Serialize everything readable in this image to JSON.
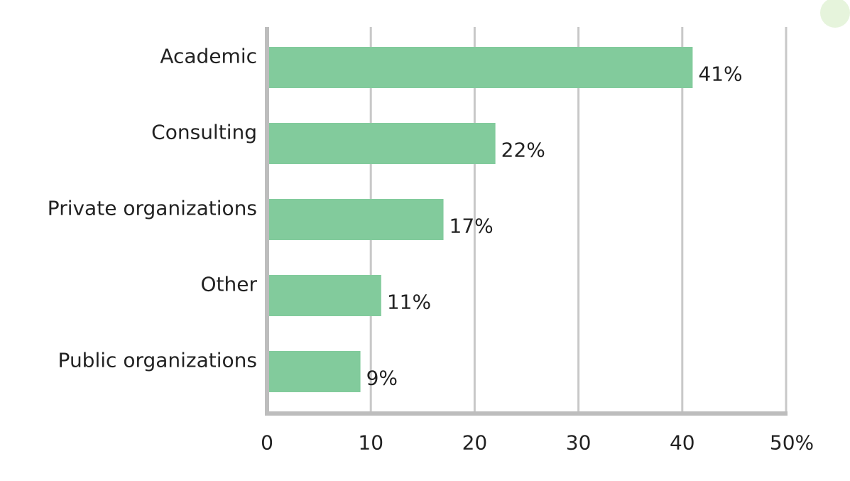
{
  "chart_data": {
    "type": "bar",
    "orientation": "horizontal",
    "categories": [
      "Academic",
      "Consulting",
      "Private organizations",
      "Other",
      "Public organizations"
    ],
    "values": [
      41,
      22,
      17,
      11,
      9
    ],
    "value_labels": [
      "41%",
      "22%",
      "17%",
      "11%",
      "9%"
    ],
    "xlim": [
      0,
      50
    ],
    "x_ticks": [
      0,
      10,
      20,
      30,
      40,
      50
    ],
    "x_tick_labels": [
      "0",
      "10",
      "20",
      "30",
      "40",
      "50%"
    ],
    "grid": "vertical",
    "colors": {
      "bar": "#82cb9c",
      "grid": "#c8c8c8",
      "axis": "#bdbdbd",
      "decoration": "#e6f4dc"
    }
  }
}
